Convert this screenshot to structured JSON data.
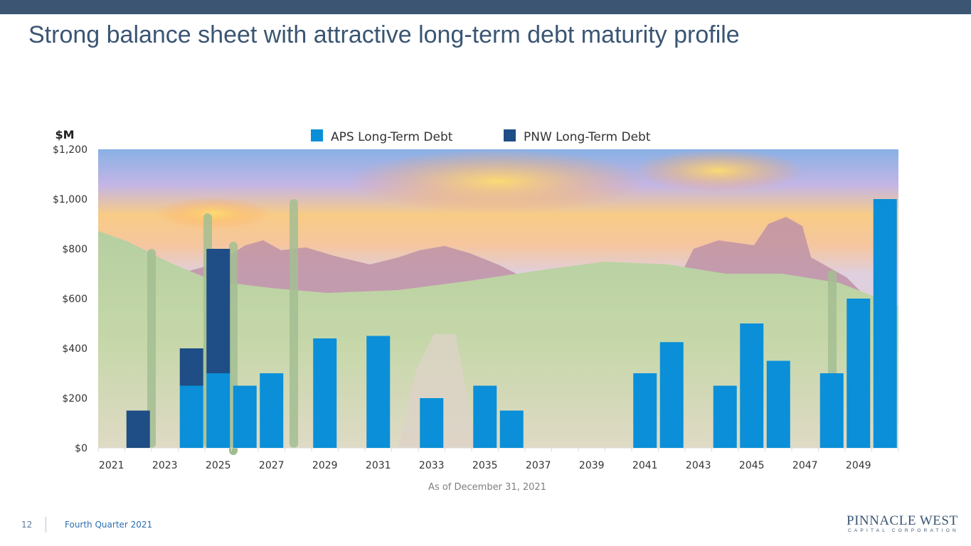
{
  "slide": {
    "title": "Strong balance sheet with attractive long-term debt maturity profile",
    "page_number": "12",
    "footer": "Fourth Quarter 2021",
    "logo": {
      "main": "PINNACLE WEST",
      "sub": "CAPITAL CORPORATION"
    },
    "colors": {
      "bar_band": "#3b5573",
      "title": "#3b5573",
      "footer_text": "#2a6fb0"
    }
  },
  "chart_data": {
    "type": "bar",
    "stacked": true,
    "title": "",
    "ylabel": "$M",
    "xlabel": "",
    "ylim": [
      0,
      1200
    ],
    "y_ticks": [
      0,
      200,
      400,
      600,
      800,
      1000,
      1200
    ],
    "y_tick_labels": [
      "$0",
      "$200",
      "$400",
      "$600",
      "$800",
      "$1,000",
      "$1,200"
    ],
    "x_tick_labels": [
      "2021",
      "2023",
      "2025",
      "2027",
      "2029",
      "2031",
      "2033",
      "2035",
      "2037",
      "2039",
      "2041",
      "2043",
      "2045",
      "2047",
      "2049"
    ],
    "categories": [
      2021,
      2022,
      2023,
      2024,
      2025,
      2026,
      2027,
      2028,
      2029,
      2030,
      2031,
      2032,
      2033,
      2034,
      2035,
      2036,
      2037,
      2038,
      2039,
      2040,
      2041,
      2042,
      2043,
      2044,
      2045,
      2046,
      2047,
      2048,
      2049,
      2050
    ],
    "series": [
      {
        "name": "APS Long-Term Debt",
        "color": "#0a8fd8",
        "values": [
          0,
          0,
          0,
          250,
          300,
          250,
          300,
          0,
          440,
          0,
          450,
          0,
          200,
          0,
          250,
          150,
          0,
          0,
          0,
          0,
          300,
          425,
          0,
          250,
          500,
          350,
          0,
          300,
          600,
          1000
        ]
      },
      {
        "name": "PNW Long-Term Debt",
        "color": "#1f4d85",
        "values": [
          0,
          150,
          0,
          150,
          500,
          0,
          0,
          0,
          0,
          0,
          0,
          0,
          0,
          0,
          0,
          0,
          0,
          0,
          0,
          0,
          0,
          0,
          0,
          0,
          0,
          0,
          0,
          0,
          0,
          0
        ]
      }
    ],
    "legend_position": "top-center",
    "grid": false,
    "background": "desert landscape photograph",
    "annotation": "As of December 31, 2021"
  }
}
